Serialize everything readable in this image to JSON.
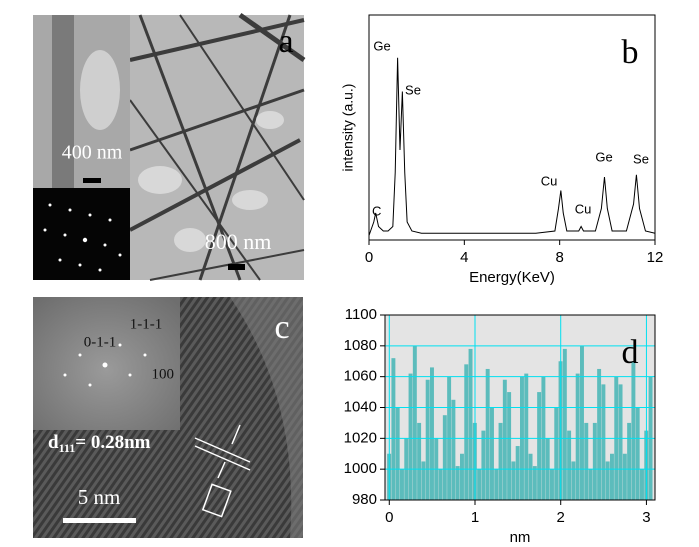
{
  "figure": {
    "panel_a": {
      "label": "a",
      "scale_bar_inset": "400 nm",
      "scale_bar_main": "800 nm"
    },
    "panel_c": {
      "label": "c",
      "fft_labels": [
        "0-1-1",
        "1-1-1",
        "100"
      ],
      "d_spacing": {
        "symbol": "d",
        "subscript": "111",
        "text": "= 0.28nm"
      },
      "scale_bar": "5 nm"
    }
  },
  "chart_data": [
    {
      "type": "line",
      "label": "b",
      "xlabel": "Energy(KeV)",
      "ylabel": "intensity (a.u.)",
      "color": "#000000",
      "x": [
        0,
        0.2,
        0.28,
        0.4,
        0.6,
        0.8,
        1.0,
        1.1,
        1.2,
        1.3,
        1.4,
        1.5,
        1.6,
        1.8,
        2.2,
        3,
        4,
        5,
        6,
        7,
        7.8,
        7.95,
        8.05,
        8.15,
        8.3,
        8.8,
        8.9,
        9.0,
        9.5,
        9.75,
        9.88,
        10.0,
        10.2,
        10.8,
        11.1,
        11.22,
        11.35,
        11.6,
        12
      ],
      "values": [
        2,
        8,
        12,
        6,
        4,
        4,
        6,
        30,
        81,
        40,
        66,
        30,
        8,
        4,
        3,
        3,
        3,
        3,
        3,
        3,
        4,
        14,
        22,
        12,
        4,
        4,
        6,
        4,
        4,
        14,
        28,
        14,
        4,
        4,
        16,
        29,
        14,
        4,
        3
      ],
      "xlim": [
        0,
        12
      ],
      "xticks": [
        0,
        4,
        8,
        12
      ],
      "ylim": [
        0,
        100
      ],
      "annotations": [
        "C",
        "Ge",
        "Se",
        "Cu",
        "Cu",
        "Ge",
        "Se"
      ]
    },
    {
      "type": "bar",
      "label": "d",
      "xlabel": "nm",
      "color": "#5cbcbc",
      "background": "#e4e4e4",
      "grid": true,
      "grid_color": "#00e0f0",
      "x": [
        0,
        0.05,
        0.1,
        0.15,
        0.2,
        0.25,
        0.3,
        0.35,
        0.4,
        0.45,
        0.5,
        0.55,
        0.6,
        0.65,
        0.7,
        0.75,
        0.8,
        0.85,
        0.9,
        0.95,
        1.0,
        1.05,
        1.1,
        1.15,
        1.2,
        1.25,
        1.3,
        1.35,
        1.4,
        1.45,
        1.5,
        1.55,
        1.6,
        1.65,
        1.7,
        1.75,
        1.8,
        1.85,
        1.9,
        1.95,
        2.0,
        2.05,
        2.1,
        2.15,
        2.2,
        2.25,
        2.3,
        2.35,
        2.4,
        2.45,
        2.5,
        2.55,
        2.6,
        2.65,
        2.7,
        2.75,
        2.8,
        2.85,
        2.9,
        2.95,
        3.0,
        3.05
      ],
      "values": [
        1010,
        1072,
        1040,
        1000,
        1020,
        1062,
        1080,
        1030,
        1005,
        1058,
        1066,
        1020,
        1000,
        1035,
        1060,
        1045,
        1002,
        1010,
        1068,
        1078,
        1030,
        1000,
        1025,
        1065,
        1040,
        1000,
        1030,
        1058,
        1050,
        1005,
        1015,
        1060,
        1062,
        1010,
        1002,
        1050,
        1060,
        1020,
        1000,
        1040,
        1070,
        1078,
        1025,
        1005,
        1062,
        1080,
        1030,
        1000,
        1030,
        1065,
        1055,
        1005,
        1010,
        1060,
        1055,
        1010,
        1030,
        1070,
        1040,
        1000,
        1025,
        1060
      ],
      "xlim": [
        -0.05,
        3.1
      ],
      "xticks": [
        0,
        1,
        2,
        3
      ],
      "ylim": [
        980,
        1100
      ],
      "yticks": [
        980,
        1000,
        1020,
        1040,
        1060,
        1080,
        1100
      ]
    }
  ]
}
